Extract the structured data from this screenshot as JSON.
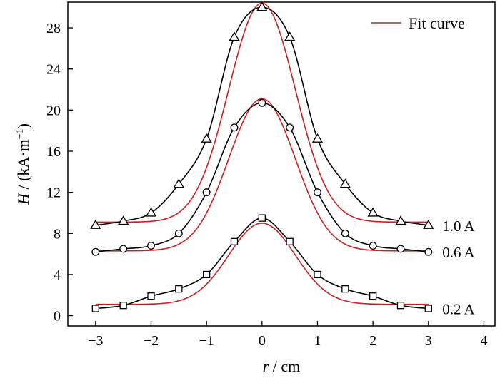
{
  "chart_data": {
    "type": "line",
    "xlabel_var": "r",
    "xlabel_unit": " / cm",
    "ylabel_var": "H",
    "ylabel_unit": " / (kA·m",
    "ylabel_exp": "−1",
    "ylabel_close": ")",
    "xlim": [
      -3.5,
      4.2
    ],
    "ylim": [
      -1,
      30.5
    ],
    "x_ticks": [
      -3,
      -2,
      -1,
      0,
      1,
      2,
      3,
      4
    ],
    "x_tick_labels": [
      "−3",
      "−2",
      "−1",
      "0",
      "1",
      "2",
      "3",
      "4"
    ],
    "y_ticks": [
      0,
      4,
      8,
      12,
      16,
      20,
      24,
      28
    ],
    "y_tick_labels": [
      "0",
      "4",
      "8",
      "12",
      "16",
      "20",
      "24",
      "28"
    ],
    "grid": false,
    "legend_position": "top-right",
    "legend_label": "Fit curve",
    "fit_color": "#cc1f1f",
    "data_color": "#000000",
    "x": [
      -3,
      -2.5,
      -2,
      -1.5,
      -1,
      -0.5,
      0,
      0.5,
      1,
      1.5,
      2,
      2.5,
      3
    ],
    "series": [
      {
        "label": "1.0 A",
        "marker": "triangle",
        "values": [
          8.8,
          9.2,
          10.0,
          12.8,
          17.2,
          27.1,
          30.0,
          27.1,
          17.2,
          12.8,
          10.0,
          9.2,
          8.8
        ],
        "fit": {
          "base": 9.1,
          "amplitude": 21.3,
          "sigma": 0.6
        }
      },
      {
        "label": "0.6 A",
        "marker": "circle",
        "values": [
          6.2,
          6.5,
          6.8,
          8.0,
          12.0,
          18.3,
          20.7,
          18.3,
          12.0,
          8.0,
          6.8,
          6.5,
          6.2
        ],
        "fit": {
          "base": 6.3,
          "amplitude": 14.8,
          "sigma": 0.6
        }
      },
      {
        "label": "0.2 A",
        "marker": "square",
        "values": [
          0.7,
          1.0,
          1.9,
          2.6,
          4.0,
          7.2,
          9.5,
          7.2,
          4.0,
          2.6,
          1.9,
          1.0,
          0.7
        ],
        "fit": {
          "base": 1.1,
          "amplitude": 7.9,
          "sigma": 0.6
        }
      }
    ]
  }
}
